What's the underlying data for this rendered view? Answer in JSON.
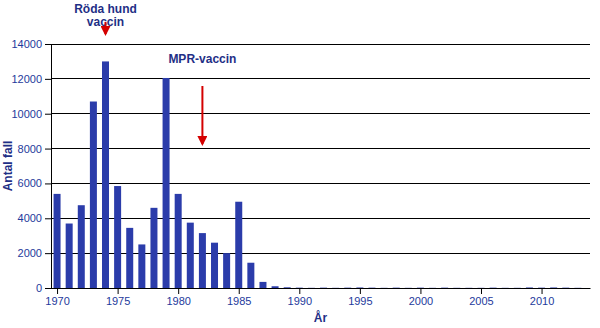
{
  "chart_data": {
    "type": "bar",
    "x": [
      1970,
      1971,
      1972,
      1973,
      1974,
      1975,
      1976,
      1977,
      1978,
      1979,
      1980,
      1981,
      1982,
      1983,
      1984,
      1985,
      1986,
      1987,
      1988,
      1989,
      1990,
      1991,
      1992,
      1993,
      1994,
      1995,
      1996,
      1997,
      1998,
      1999,
      2000,
      2001,
      2002,
      2003,
      2004,
      2005,
      2006,
      2007,
      2008,
      2009,
      2010,
      2011,
      2012,
      2013
    ],
    "values": [
      5400,
      3700,
      4750,
      10700,
      13000,
      5850,
      3450,
      2500,
      4600,
      12050,
      5400,
      3750,
      3150,
      2600,
      2000,
      4950,
      1450,
      350,
      100,
      40,
      20,
      10,
      20,
      10,
      20,
      30,
      20,
      10,
      20,
      10,
      20,
      10,
      20,
      10,
      10,
      10,
      20,
      10,
      10,
      30,
      20,
      30,
      20,
      10
    ],
    "color": "#2b3caa",
    "x_label": "År",
    "y_label": "Antal fall",
    "xlim": [
      1969.5,
      2014
    ],
    "xticks": [
      1970,
      1975,
      1980,
      1985,
      1990,
      1995,
      2000,
      2005,
      2010
    ],
    "ylim": [
      0,
      14000
    ],
    "yticks": [
      0,
      2000,
      4000,
      6000,
      8000,
      10000,
      12000,
      14000
    ],
    "grid": true,
    "annotations": [
      {
        "text": "Röda hund vaccin",
        "x": 1974
      },
      {
        "text": "MPR-vaccin",
        "x": 1982
      }
    ]
  }
}
